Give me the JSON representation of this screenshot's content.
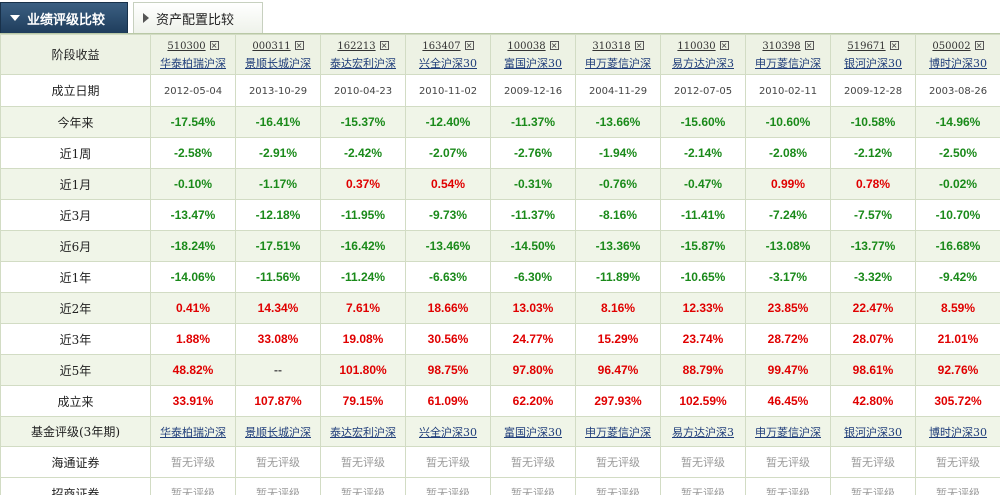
{
  "tabs": {
    "active": "业绩评级比较",
    "inactive": "资产配置比较"
  },
  "funds": [
    {
      "code": "510300",
      "name": "华泰柏瑞沪深",
      "established": "2012-05-04",
      "returns": [
        "-17.54%",
        "-2.58%",
        "-0.10%",
        "-13.47%",
        "-18.24%",
        "-14.06%",
        "0.41%",
        "1.88%",
        "48.82%",
        "33.91%"
      ]
    },
    {
      "code": "000311",
      "name": "景顺长城沪深",
      "established": "2013-10-29",
      "returns": [
        "-16.41%",
        "-2.91%",
        "-1.17%",
        "-12.18%",
        "-17.51%",
        "-11.56%",
        "14.34%",
        "33.08%",
        "--",
        "107.87%"
      ]
    },
    {
      "code": "162213",
      "name": "泰达宏利沪深",
      "established": "2010-04-23",
      "returns": [
        "-15.37%",
        "-2.42%",
        "0.37%",
        "-11.95%",
        "-16.42%",
        "-11.24%",
        "7.61%",
        "19.08%",
        "101.80%",
        "79.15%"
      ]
    },
    {
      "code": "163407",
      "name": "兴全沪深30",
      "established": "2010-11-02",
      "returns": [
        "-12.40%",
        "-2.07%",
        "0.54%",
        "-9.73%",
        "-13.46%",
        "-6.63%",
        "18.66%",
        "30.56%",
        "98.75%",
        "61.09%"
      ]
    },
    {
      "code": "100038",
      "name": "富国沪深30",
      "established": "2009-12-16",
      "returns": [
        "-11.37%",
        "-2.76%",
        "-0.31%",
        "-11.37%",
        "-14.50%",
        "-6.30%",
        "13.03%",
        "24.77%",
        "97.80%",
        "62.20%"
      ]
    },
    {
      "code": "310318",
      "name": "申万菱信沪深",
      "established": "2004-11-29",
      "returns": [
        "-13.66%",
        "-1.94%",
        "-0.76%",
        "-8.16%",
        "-13.36%",
        "-11.89%",
        "8.16%",
        "15.29%",
        "96.47%",
        "297.93%"
      ]
    },
    {
      "code": "110030",
      "name": "易方达沪深3",
      "established": "2012-07-05",
      "returns": [
        "-15.60%",
        "-2.14%",
        "-0.47%",
        "-11.41%",
        "-15.87%",
        "-10.65%",
        "12.33%",
        "23.74%",
        "88.79%",
        "102.59%"
      ]
    },
    {
      "code": "310398",
      "name": "申万菱信沪深",
      "established": "2010-02-11",
      "returns": [
        "-10.60%",
        "-2.08%",
        "0.99%",
        "-7.24%",
        "-13.08%",
        "-3.17%",
        "23.85%",
        "28.72%",
        "99.47%",
        "46.45%"
      ]
    },
    {
      "code": "519671",
      "name": "银河沪深30",
      "established": "2009-12-28",
      "returns": [
        "-10.58%",
        "-2.12%",
        "0.78%",
        "-7.57%",
        "-13.77%",
        "-3.32%",
        "22.47%",
        "28.07%",
        "98.61%",
        "42.80%"
      ]
    },
    {
      "code": "050002",
      "name": "博时沪深30",
      "established": "2003-08-26",
      "returns": [
        "-14.96%",
        "-2.50%",
        "-0.02%",
        "-10.70%",
        "-16.68%",
        "-9.42%",
        "8.59%",
        "21.01%",
        "92.76%",
        "305.72%"
      ]
    }
  ],
  "row_labels": {
    "header": "阶段收益",
    "established": "成立日期",
    "periods": [
      "今年来",
      "近1周",
      "近1月",
      "近3月",
      "近6月",
      "近1年",
      "近2年",
      "近3年",
      "近5年",
      "成立来"
    ],
    "rating": "基金评级(3年期)",
    "agencies": [
      "海通证券",
      "招商证券"
    ]
  },
  "no_rating_text": "暂无评级",
  "close_glyph": "×",
  "colors": {
    "positive": "#e00000",
    "negative": "#1a8a1a",
    "tab_active": "#2a4a6b",
    "row_alt": "#f0f5e8"
  }
}
